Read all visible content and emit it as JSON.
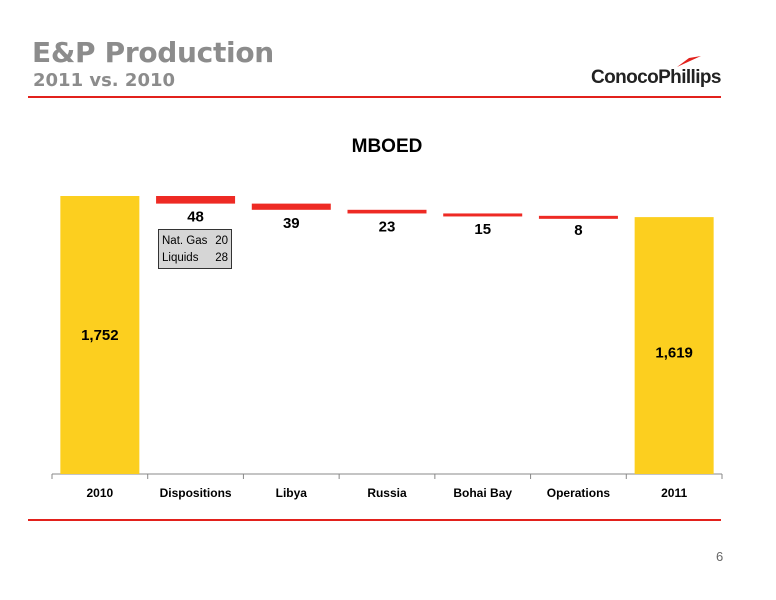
{
  "header": {
    "title": "E&P Production",
    "subtitle": "2011 vs. 2010",
    "logo_text": "ConocoPhillips"
  },
  "page_number": "6",
  "breakdown_box": {
    "rows": [
      {
        "label": "Nat. Gas",
        "value": "20"
      },
      {
        "label": "Liquids",
        "value": "28"
      }
    ]
  },
  "colors": {
    "total_bar": "#fccf1f",
    "decrease_bar": "#ee2a24",
    "rule": "#e2211c",
    "title_gray": "#8c8c8c"
  },
  "chart_data": {
    "type": "bar",
    "subtype": "waterfall",
    "title": "MBOED",
    "categories": [
      "2010",
      "Dispositions",
      "Libya",
      "Russia",
      "Bohai Bay",
      "Operations",
      "2011"
    ],
    "values": [
      1752,
      -48,
      -39,
      -23,
      -15,
      -8,
      1619
    ],
    "labels": [
      "1,752",
      "48",
      "39",
      "23",
      "15",
      "8",
      "1,619"
    ],
    "bar_kind": [
      "total",
      "decrease",
      "decrease",
      "decrease",
      "decrease",
      "decrease",
      "total"
    ],
    "xlabel": "",
    "ylabel": "",
    "y_axis_visible": false,
    "grid": false
  }
}
